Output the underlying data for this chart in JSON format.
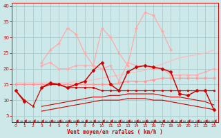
{
  "background_color": "#cce8e8",
  "grid_color": "#aacccc",
  "xlabel": "Vent moyen/en rafales ( km/h )",
  "xlabel_color": "#dd0000",
  "tick_color": "#dd0000",
  "x": [
    0,
    1,
    2,
    3,
    4,
    5,
    6,
    7,
    8,
    9,
    10,
    11,
    12,
    13,
    14,
    15,
    16,
    17,
    18,
    19,
    20,
    21,
    22,
    23
  ],
  "ylim": [
    3,
    41
  ],
  "xlim": [
    -0.5,
    23.5
  ],
  "yticks": [
    5,
    10,
    15,
    20,
    25,
    30,
    35,
    40
  ],
  "lines": [
    {
      "y": [
        15.5,
        15.5,
        15.5,
        15.5,
        15.5,
        15.5,
        15.5,
        16,
        16,
        16.5,
        17,
        17.5,
        18,
        18.5,
        19,
        19.5,
        20.5,
        21.5,
        22.5,
        23.5,
        24,
        24.5,
        25,
        26
      ],
      "color": "#ffbbbb",
      "lw": 0.9,
      "marker": null,
      "ms": 0,
      "ls": "-"
    },
    {
      "y": [
        15,
        15,
        15,
        15,
        15,
        15,
        15,
        15,
        15,
        15,
        15,
        15,
        15.5,
        16,
        16,
        16,
        16.5,
        17,
        17,
        17,
        17,
        17,
        17,
        17
      ],
      "color": "#ff9999",
      "lw": 0.9,
      "marker": "D",
      "ms": 2,
      "ls": "-"
    },
    {
      "y": [
        null,
        null,
        null,
        21,
        22,
        20,
        20,
        21,
        21,
        21,
        20,
        21,
        16,
        22,
        21,
        21,
        20,
        20,
        18,
        18,
        18,
        18,
        19,
        20
      ],
      "color": "#ffaaaa",
      "lw": 0.9,
      "marker": "D",
      "ms": 2,
      "ls": "-"
    },
    {
      "y": [
        null,
        null,
        null,
        22,
        26,
        28,
        33,
        31,
        25,
        21,
        33,
        30,
        25,
        21,
        33,
        38,
        37,
        32,
        26,
        null,
        null,
        null,
        null,
        null
      ],
      "color": "#ffaaaa",
      "lw": 0.9,
      "marker": "D",
      "ms": 2,
      "ls": "-"
    },
    {
      "y": [
        13,
        10,
        8,
        14,
        15,
        15,
        14,
        14,
        14,
        14,
        13,
        13,
        13,
        13,
        13,
        13,
        13,
        13,
        13,
        13,
        13,
        13,
        13,
        13
      ],
      "color": "#cc0000",
      "lw": 0.9,
      "marker": "s",
      "ms": 2,
      "ls": "-"
    },
    {
      "y": [
        13,
        9.5,
        null,
        14,
        15.5,
        15,
        14,
        15,
        16,
        19.5,
        22,
        15,
        13,
        19,
        20.5,
        21,
        20.5,
        20,
        19,
        12,
        11.5,
        13,
        13,
        7
      ],
      "color": "#cc0000",
      "lw": 1.1,
      "marker": "D",
      "ms": 2.5,
      "ls": "-"
    },
    {
      "y": [
        null,
        null,
        null,
        8,
        8.5,
        9,
        9.5,
        10,
        10.5,
        11,
        11,
        11.5,
        11.5,
        12,
        12,
        12,
        12,
        11.5,
        11,
        11,
        10.5,
        10,
        9.5,
        8.5
      ],
      "color": "#cc0000",
      "lw": 0.8,
      "marker": null,
      "ms": 0,
      "ls": "-"
    },
    {
      "y": [
        null,
        null,
        null,
        6.5,
        7,
        7.5,
        8,
        8.5,
        9,
        9.5,
        10,
        10,
        10,
        10.5,
        10.5,
        10.5,
        10,
        10,
        9.5,
        9,
        8.5,
        8,
        7.5,
        7
      ],
      "color": "#cc0000",
      "lw": 0.8,
      "marker": null,
      "ms": 0,
      "ls": "-"
    },
    {
      "y": [
        3.5,
        3.5,
        3.5,
        3.5,
        3.5,
        3.5,
        3.5,
        3.5,
        3.5,
        3.5,
        3.5,
        3.5,
        3.5,
        3.5,
        3.5,
        3.5,
        3.5,
        3.5,
        3.5,
        3.5,
        3.5,
        3.5,
        3.5,
        3.5
      ],
      "color": "#cc0000",
      "lw": 0.8,
      "marker": 4,
      "ms": 3,
      "ls": "--"
    }
  ]
}
